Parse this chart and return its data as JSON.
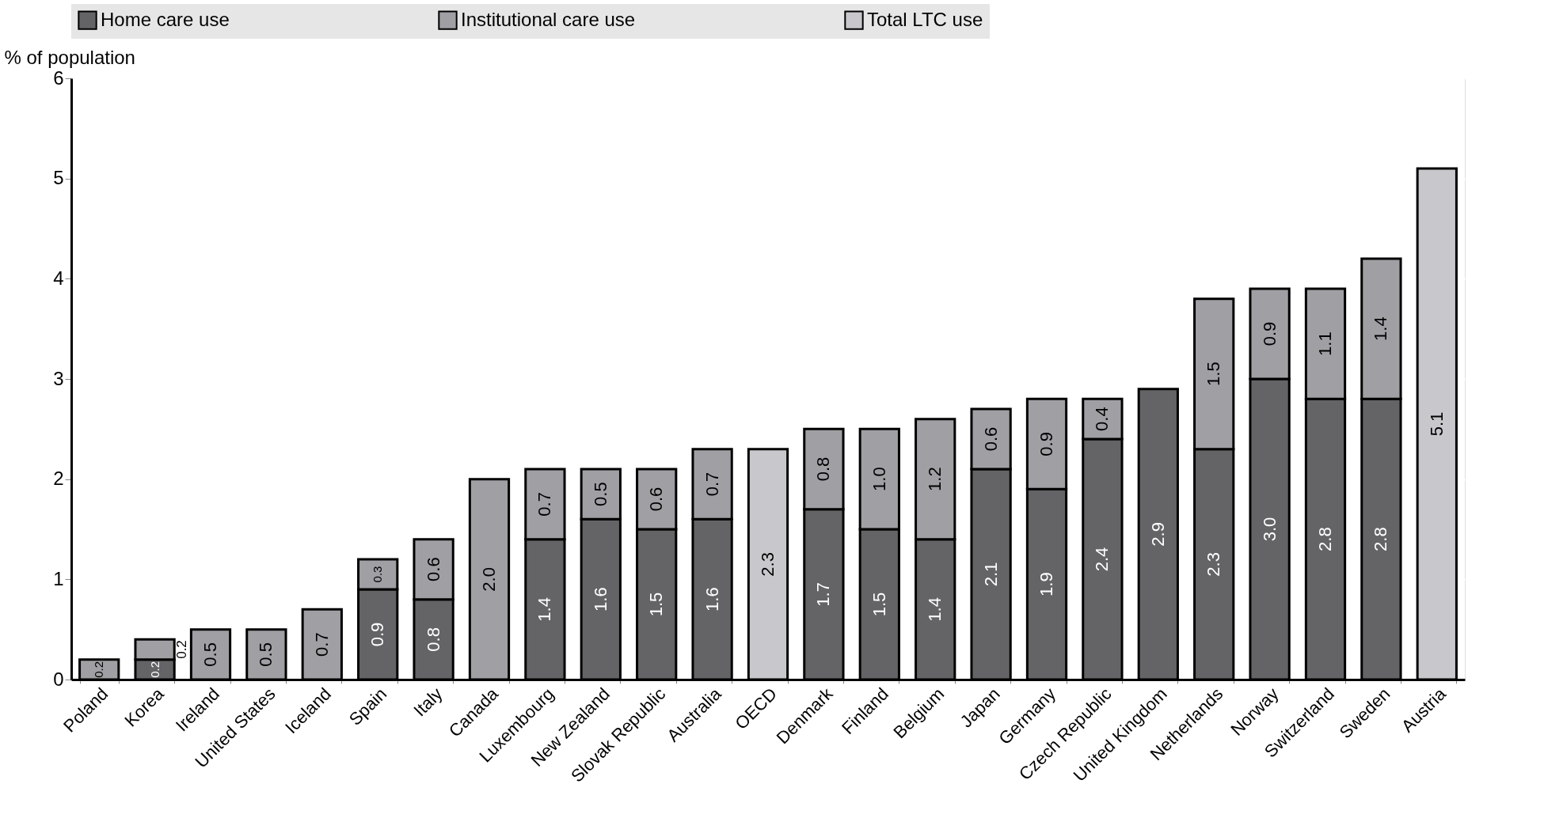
{
  "chart_data": {
    "type": "bar",
    "ylabel": "% of population",
    "stacked": true,
    "grid": true,
    "legend": "top",
    "categories": [
      "Poland",
      "Korea",
      "Ireland",
      "United States",
      "Iceland",
      "Spain",
      "Italy",
      "Canada",
      "Luxembourg",
      "New Zealand",
      "Slovak Republic",
      "Australia",
      "OECD",
      "Denmark",
      "Finland",
      "Belgium",
      "Japan",
      "Germany",
      "Czech Republic",
      "United Kingdom",
      "Netherlands",
      "Norway",
      "Switzerland",
      "Sweden",
      "Austria"
    ],
    "series": [
      {
        "name": "Home care use",
        "color": "#646467",
        "values": [
          null,
          0.2,
          null,
          null,
          null,
          0.9,
          0.8,
          null,
          1.4,
          1.6,
          1.5,
          1.6,
          null,
          1.7,
          1.5,
          1.4,
          2.1,
          1.9,
          2.4,
          2.9,
          2.3,
          3.0,
          2.8,
          2.8,
          null
        ],
        "value_labels": [
          null,
          "0.2",
          null,
          null,
          null,
          "0.9",
          "0.8",
          null,
          "1.4",
          "1.6",
          "1.5",
          "1.6",
          null,
          "1.7",
          "1.5",
          "1.4",
          "2.1",
          "1.9",
          "2.4",
          "2.9",
          "2.3",
          "3.0",
          "2.8",
          "2.8",
          null
        ]
      },
      {
        "name": "Institutional care use",
        "color": "#a0a0a4",
        "values": [
          0.2,
          0.2,
          0.5,
          0.5,
          0.7,
          0.3,
          0.6,
          2.0,
          0.7,
          0.5,
          0.6,
          0.7,
          null,
          0.8,
          1.0,
          1.2,
          0.6,
          0.9,
          0.4,
          null,
          1.5,
          0.9,
          1.1,
          1.4,
          null
        ],
        "value_labels": [
          "0.2",
          "0.2",
          "0.5",
          "0.5",
          "0.7",
          "0.3",
          "0.6",
          "2.0",
          "0.7",
          "0.5",
          "0.6",
          "0.7",
          null,
          "0.8",
          "1.0",
          "1.2",
          "0.6",
          "0.9",
          "0.4",
          null,
          "1.5",
          "0.9",
          "1.1",
          "1.4",
          null
        ]
      },
      {
        "name": "Total LTC use",
        "color": "#c8c8cc",
        "values": [
          null,
          null,
          null,
          null,
          null,
          null,
          null,
          null,
          null,
          null,
          null,
          null,
          2.3,
          null,
          null,
          null,
          null,
          null,
          null,
          null,
          null,
          null,
          null,
          null,
          5.1
        ],
        "value_labels": [
          null,
          null,
          null,
          null,
          null,
          null,
          null,
          null,
          null,
          null,
          null,
          null,
          "2.3",
          null,
          null,
          null,
          null,
          null,
          null,
          null,
          null,
          null,
          null,
          null,
          "5.1"
        ]
      }
    ],
    "ylim": [
      0,
      6
    ],
    "yticks": [
      0,
      1,
      2,
      3,
      4,
      5,
      6
    ]
  }
}
